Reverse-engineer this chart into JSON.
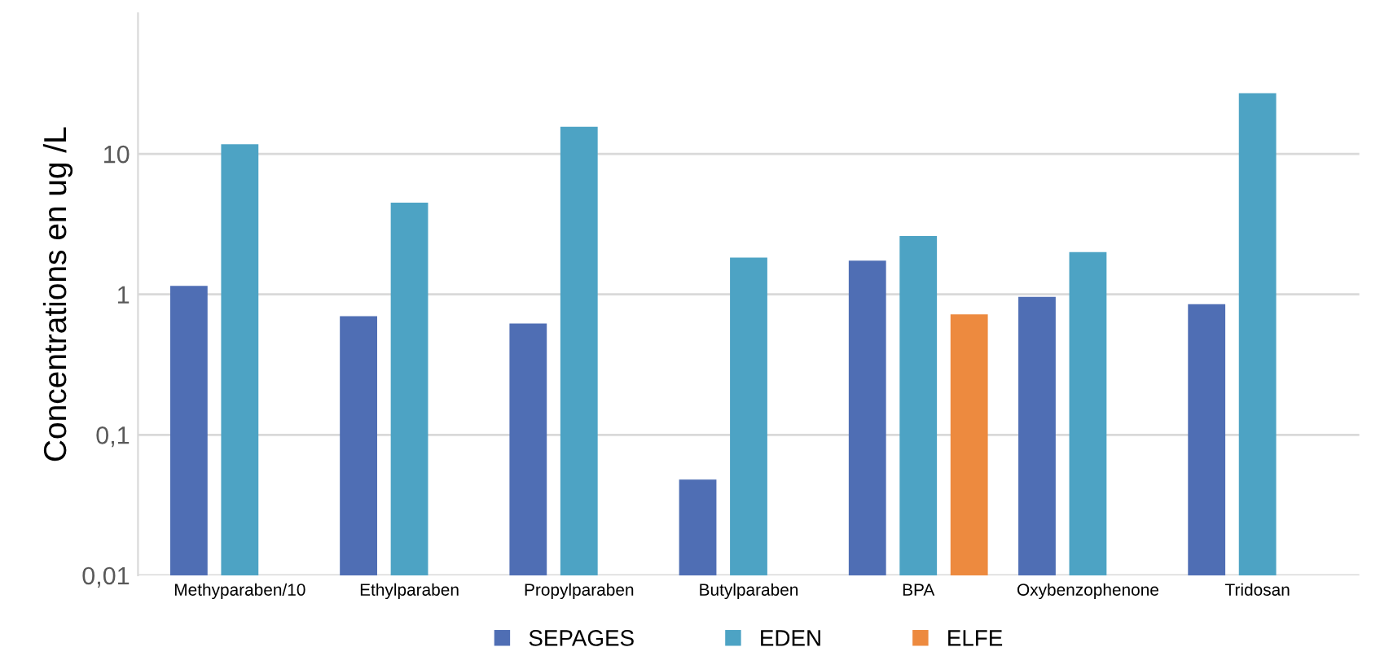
{
  "chart_data": {
    "type": "bar",
    "ylabel": "Concentrations en ug /L",
    "categories": [
      "Methyparaben/10",
      "Ethylparaben",
      "Propylparaben",
      "Butylparaben",
      "BPA",
      "Oxybenzophenone",
      "Tridosan"
    ],
    "series": [
      {
        "name": "SEPAGES",
        "color": "#4f6eb4",
        "values": [
          1.15,
          0.7,
          0.62,
          0.048,
          1.74,
          0.96,
          0.85
        ]
      },
      {
        "name": "EDEN",
        "color": "#4da3c4",
        "values": [
          11.7,
          4.5,
          15.6,
          1.83,
          2.6,
          2.0,
          27
        ]
      },
      {
        "name": "ELFE",
        "color": "#ed8a3f",
        "values": [
          null,
          null,
          null,
          null,
          0.72,
          null,
          null
        ]
      }
    ],
    "log": "y",
    "ylim": [
      0.01,
      100
    ],
    "yticks": [
      {
        "value": 0.01,
        "label": "0,01"
      },
      {
        "value": 0.1,
        "label": "0,1"
      },
      1,
      10
    ],
    "grid": "y",
    "legend": "bottom"
  }
}
